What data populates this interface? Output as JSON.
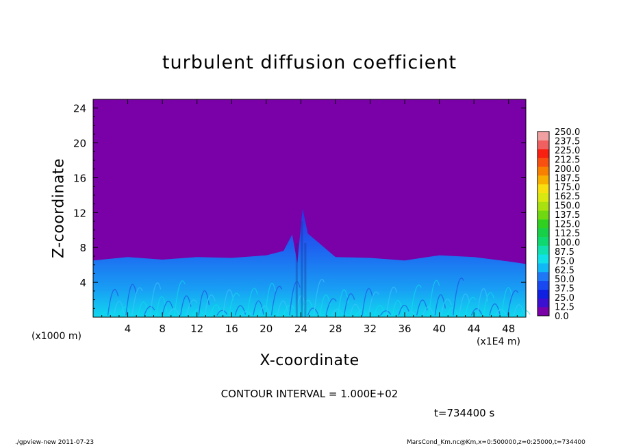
{
  "chart_data": {
    "type": "heatmap",
    "title": "turbulent diffusion coefficient",
    "xlabel": "X-coordinate",
    "ylabel": "Z-coordinate",
    "x_unit_left": "(x1000 m)",
    "x_unit_right": "(x1E4 m)",
    "xlim": [
      0,
      50
    ],
    "ylim": [
      0,
      25
    ],
    "x_ticks": [
      4,
      8,
      12,
      16,
      20,
      24,
      28,
      32,
      36,
      40,
      44,
      48
    ],
    "y_ticks": [
      4,
      8,
      12,
      16,
      20,
      24
    ],
    "colorbar_levels": [
      "0.0",
      "12.5",
      "25.0",
      "37.5",
      "50.0",
      "62.5",
      "75.0",
      "87.5",
      "100.0",
      "112.5",
      "125.0",
      "137.5",
      "150.0",
      "162.5",
      "175.0",
      "187.5",
      "200.0",
      "212.5",
      "225.0",
      "237.5",
      "250.0"
    ],
    "colorbar_colors": [
      "#7a00a8",
      "#3c10d0",
      "#1020e0",
      "#1848f0",
      "#1e78f6",
      "#10b8f6",
      "#10e0e8",
      "#10e0b0",
      "#10d870",
      "#18d048",
      "#30d020",
      "#70d810",
      "#a8e010",
      "#d8e810",
      "#f8e010",
      "#f8b000",
      "#f88000",
      "#f85010",
      "#f82010",
      "#f06060",
      "#f0a0a0"
    ],
    "background_color": "#7a00a8",
    "boundary_layer_top": [
      [
        0,
        6.5
      ],
      [
        4,
        6.9
      ],
      [
        8,
        6.6
      ],
      [
        12,
        6.9
      ],
      [
        16,
        6.8
      ],
      [
        20,
        7.1
      ],
      [
        22,
        7.6
      ],
      [
        23,
        9.5
      ],
      [
        23.6,
        6.2
      ],
      [
        24.2,
        12.5
      ],
      [
        24.8,
        9.6
      ],
      [
        26,
        8.6
      ],
      [
        28,
        6.9
      ],
      [
        32,
        6.8
      ],
      [
        36,
        6.5
      ],
      [
        40,
        7.1
      ],
      [
        44,
        6.9
      ],
      [
        48,
        6.4
      ],
      [
        50,
        6.1
      ]
    ]
  },
  "contour_interval": "CONTOUR INTERVAL = 1.000E+02",
  "time_label": "t=734400 s",
  "footer_left": "./gpview-new  2011-07-23",
  "footer_right": "MarsCond_Km.nc@Km,x=0:500000,z=0:25000,t=734400"
}
